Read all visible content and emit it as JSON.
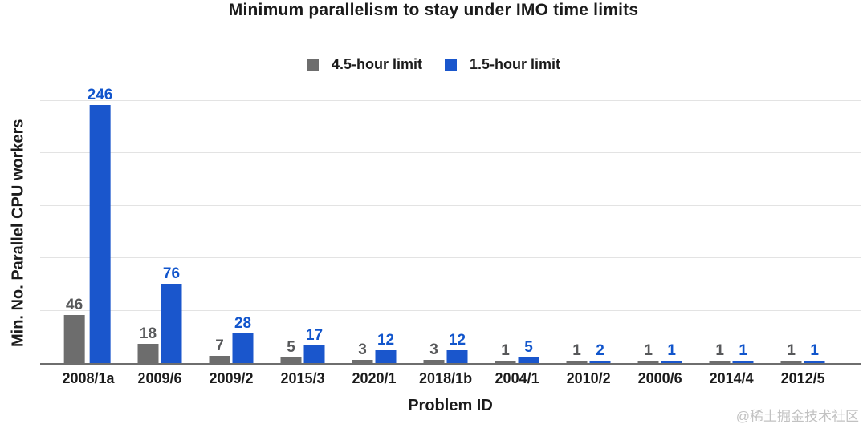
{
  "watermark": "@稀土掘金技术社区",
  "chart_data": {
    "type": "bar",
    "title": "Minimum parallelism to stay under IMO time limits",
    "xlabel": "Problem ID",
    "ylabel": "Min. No. Parallel CPU workers",
    "categories": [
      "2008/1a",
      "2009/6",
      "2009/2",
      "2015/3",
      "2020/1",
      "2018/1b",
      "2004/1",
      "2010/2",
      "2000/6",
      "2014/4",
      "2012/5"
    ],
    "series": [
      {
        "name": "4.5-hour limit",
        "bar_color": "#6d6d6d",
        "label_color": "#57585a",
        "values": [
          46,
          18,
          7,
          5,
          3,
          3,
          1,
          1,
          1,
          1,
          1
        ]
      },
      {
        "name": "1.5-hour limit",
        "bar_color": "#1a56cc",
        "label_color": "#1155cc",
        "values": [
          246,
          76,
          28,
          17,
          12,
          12,
          5,
          2,
          1,
          1,
          1
        ]
      }
    ],
    "ylim": [
      0,
      250
    ],
    "gridline_values": [
      50,
      100,
      150,
      200,
      250
    ],
    "y_tick_labels_visible": false,
    "grid": true,
    "legend_position": "top",
    "value_labels": true
  }
}
